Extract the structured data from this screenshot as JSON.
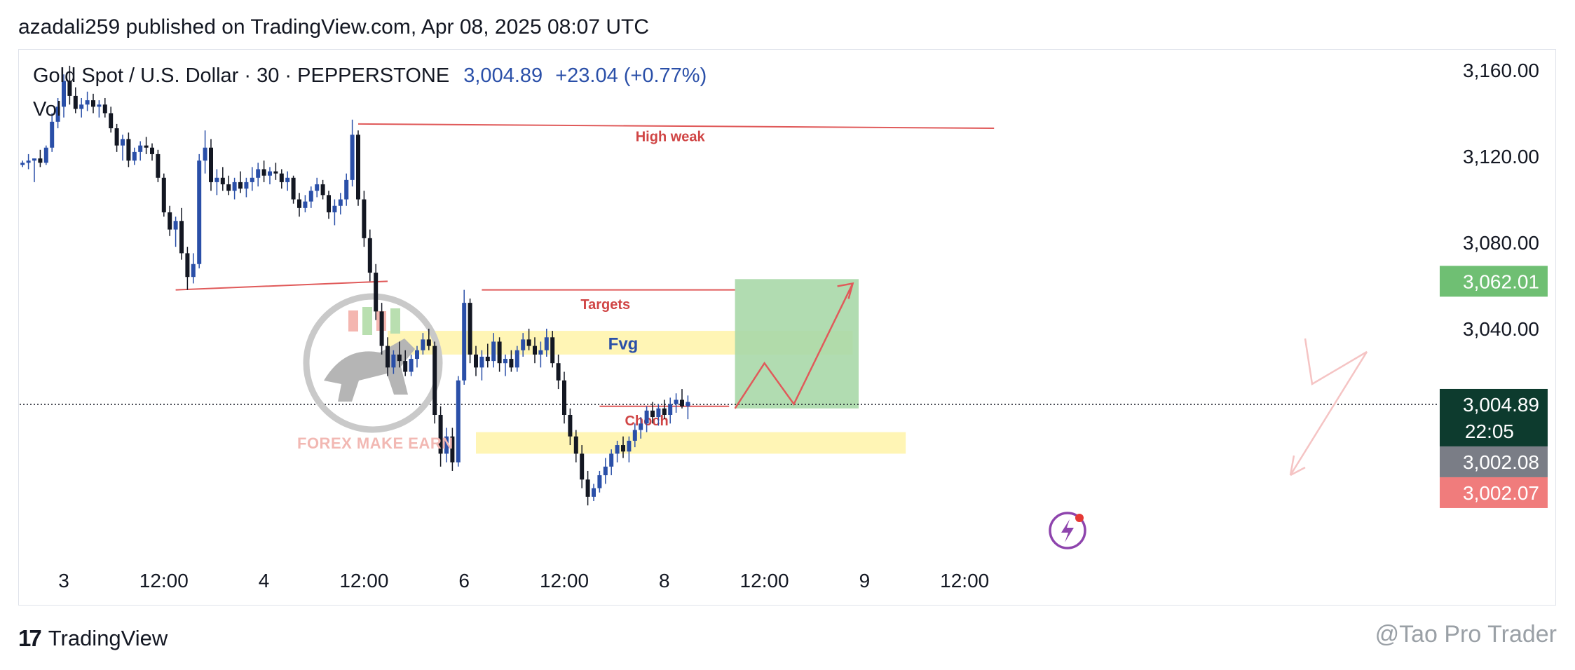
{
  "header": {
    "text": "azadali259 published on TradingView.com, Apr 08, 2025 08:07 UTC"
  },
  "symbol": {
    "name": "Gold Spot / U.S. Dollar · 30 · PEPPERSTONE",
    "price": "3,004.89",
    "change": "+23.04 (+0.77%)",
    "volume_label": "Vol"
  },
  "footer": {
    "brand": "TradingView",
    "credit": "@Tao Pro Trader"
  },
  "watermark": {
    "text": "FOREX MAKE EARN"
  },
  "chart_data": {
    "type": "candlestick",
    "y_axis": {
      "range": [
        2928,
        3168
      ],
      "ticks": [
        {
          "value": 3160,
          "label": "3,160.00"
        },
        {
          "value": 3120,
          "label": "3,120.00"
        },
        {
          "value": 3080,
          "label": "3,080.00"
        },
        {
          "value": 3040,
          "label": "3,040.00"
        }
      ]
    },
    "x_axis": {
      "ticks": [
        {
          "index": 7,
          "label": "3"
        },
        {
          "index": 24,
          "label": "12:00"
        },
        {
          "index": 41,
          "label": "4"
        },
        {
          "index": 58,
          "label": "12:00"
        },
        {
          "index": 75,
          "label": "6"
        },
        {
          "index": 92,
          "label": "12:00"
        },
        {
          "index": 109,
          "label": "8"
        },
        {
          "index": 126,
          "label": "12:00"
        },
        {
          "index": 143,
          "label": "9"
        },
        {
          "index": 160,
          "label": "12:00"
        }
      ]
    },
    "price_labels": [
      {
        "value": 3062.01,
        "label": "3,062.01",
        "color": "#6fbf73",
        "sub": ""
      },
      {
        "value": 3004.89,
        "label": "3,004.89",
        "color": "#0d3b2e",
        "sub": "22:05"
      },
      {
        "value": 3002.08,
        "label": "3,002.08",
        "color": "#7a7d86",
        "sub": ""
      },
      {
        "value": 3002.07,
        "label": "3,002.07",
        "color": "#f07c7c",
        "sub": ""
      }
    ],
    "current_price": 3004.89,
    "up_color": "#2a4fa8",
    "down_color": "#131722",
    "annotations": [
      {
        "kind": "line",
        "text": "High weak",
        "from": [
          57,
          3135
        ],
        "to": [
          165,
          3133
        ],
        "color": "#e05a5a",
        "label_at": [
          110,
          3129
        ]
      },
      {
        "kind": "line",
        "text": "",
        "from": [
          26,
          3058
        ],
        "to": [
          62,
          3062
        ],
        "color": "#e05a5a"
      },
      {
        "kind": "line",
        "text": "Targets",
        "from": [
          78,
          3058
        ],
        "to": [
          121,
          3058
        ],
        "color": "#e05a5a",
        "label_at": [
          99,
          3051
        ]
      },
      {
        "kind": "line",
        "text": "Choch",
        "from": [
          98,
          3004
        ],
        "to": [
          120,
          3004
        ],
        "color": "#e05a5a",
        "label_at": [
          106,
          2997
        ]
      },
      {
        "kind": "zone",
        "text": "Fvg",
        "x0": 62,
        "x1": 141,
        "y0": 3039,
        "y1": 3028,
        "color": "#fff3a8",
        "label_at": [
          102,
          3033
        ]
      },
      {
        "kind": "zone",
        "text": "",
        "x0": 77,
        "x1": 150,
        "y0": 2992,
        "y1": 2982,
        "color": "#fff3a8"
      }
    ],
    "target_box": {
      "x0": 121,
      "x1": 142,
      "y0": 3063,
      "y1": 3003,
      "color": "#a8d8a8"
    },
    "projection": {
      "points": [
        [
          121,
          3003
        ],
        [
          126,
          3024
        ],
        [
          131,
          3005
        ],
        [
          141,
          3061
        ]
      ],
      "color": "#e05a5a"
    },
    "candles": [
      [
        3116,
        3118,
        3115,
        3117
      ],
      [
        3117,
        3121,
        3114,
        3118
      ],
      [
        3118,
        3119,
        3108,
        3119
      ],
      [
        3119,
        3123,
        3115,
        3117
      ],
      [
        3117,
        3125,
        3116,
        3124
      ],
      [
        3124,
        3140,
        3122,
        3136
      ],
      [
        3136,
        3147,
        3133,
        3143
      ],
      [
        3143,
        3158,
        3138,
        3155
      ],
      [
        3155,
        3162,
        3144,
        3148
      ],
      [
        3148,
        3152,
        3140,
        3142
      ],
      [
        3142,
        3147,
        3138,
        3144
      ],
      [
        3144,
        3150,
        3141,
        3146
      ],
      [
        3146,
        3149,
        3140,
        3143
      ],
      [
        3143,
        3146,
        3138,
        3144
      ],
      [
        3144,
        3147,
        3138,
        3140
      ],
      [
        3140,
        3143,
        3131,
        3133
      ],
      [
        3133,
        3135,
        3122,
        3125
      ],
      [
        3125,
        3130,
        3118,
        3128
      ],
      [
        3128,
        3131,
        3115,
        3118
      ],
      [
        3118,
        3124,
        3116,
        3122
      ],
      [
        3122,
        3127,
        3118,
        3125
      ],
      [
        3125,
        3129,
        3121,
        3124
      ],
      [
        3124,
        3126,
        3118,
        3121
      ],
      [
        3121,
        3123,
        3108,
        3110
      ],
      [
        3110,
        3112,
        3092,
        3094
      ],
      [
        3094,
        3097,
        3083,
        3086
      ],
      [
        3086,
        3092,
        3078,
        3090
      ],
      [
        3090,
        3096,
        3072,
        3075
      ],
      [
        3075,
        3078,
        3058,
        3064
      ],
      [
        3064,
        3075,
        3061,
        3070
      ],
      [
        3070,
        3121,
        3068,
        3118
      ],
      [
        3118,
        3132,
        3112,
        3124
      ],
      [
        3124,
        3128,
        3104,
        3108
      ],
      [
        3108,
        3114,
        3102,
        3110
      ],
      [
        3110,
        3115,
        3104,
        3107
      ],
      [
        3107,
        3111,
        3102,
        3104
      ],
      [
        3104,
        3110,
        3100,
        3108
      ],
      [
        3108,
        3113,
        3103,
        3105
      ],
      [
        3105,
        3110,
        3101,
        3108
      ],
      [
        3108,
        3115,
        3104,
        3110
      ],
      [
        3110,
        3117,
        3106,
        3114
      ],
      [
        3114,
        3118,
        3108,
        3111
      ],
      [
        3111,
        3115,
        3107,
        3113
      ],
      [
        3113,
        3117,
        3109,
        3112
      ],
      [
        3112,
        3114,
        3105,
        3108
      ],
      [
        3108,
        3113,
        3104,
        3110
      ],
      [
        3110,
        3111,
        3098,
        3100
      ],
      [
        3100,
        3103,
        3092,
        3096
      ],
      [
        3096,
        3102,
        3094,
        3099
      ],
      [
        3099,
        3106,
        3096,
        3104
      ],
      [
        3104,
        3110,
        3101,
        3107
      ],
      [
        3107,
        3109,
        3100,
        3102
      ],
      [
        3102,
        3104,
        3091,
        3094
      ],
      [
        3094,
        3100,
        3088,
        3097
      ],
      [
        3097,
        3103,
        3093,
        3100
      ],
      [
        3100,
        3112,
        3097,
        3109
      ],
      [
        3109,
        3137,
        3106,
        3130
      ],
      [
        3130,
        3132,
        3097,
        3100
      ],
      [
        3100,
        3104,
        3078,
        3082
      ],
      [
        3082,
        3086,
        3062,
        3066
      ],
      [
        3066,
        3070,
        3044,
        3048
      ],
      [
        3048,
        3052,
        3028,
        3032
      ],
      [
        3032,
        3036,
        3018,
        3022
      ],
      [
        3022,
        3030,
        3019,
        3028
      ],
      [
        3028,
        3034,
        3022,
        3025
      ],
      [
        3025,
        3030,
        3018,
        3020
      ],
      [
        3020,
        3028,
        3018,
        3026
      ],
      [
        3026,
        3032,
        3022,
        3030
      ],
      [
        3030,
        3038,
        3028,
        3035
      ],
      [
        3035,
        3040,
        3030,
        3032
      ],
      [
        3032,
        3034,
        2996,
        3000
      ],
      [
        3000,
        3004,
        2976,
        2982
      ],
      [
        2982,
        2994,
        2978,
        2990
      ],
      [
        2990,
        2994,
        2974,
        2978
      ],
      [
        2978,
        3018,
        2976,
        3016
      ],
      [
        3016,
        3058,
        3014,
        3052
      ],
      [
        3052,
        3054,
        3024,
        3028
      ],
      [
        3028,
        3032,
        3018,
        3022
      ],
      [
        3022,
        3030,
        3016,
        3027
      ],
      [
        3027,
        3033,
        3022,
        3025
      ],
      [
        3025,
        3038,
        3022,
        3034
      ],
      [
        3034,
        3036,
        3020,
        3024
      ],
      [
        3024,
        3028,
        3018,
        3026
      ],
      [
        3026,
        3030,
        3020,
        3022
      ],
      [
        3022,
        3032,
        3020,
        3030
      ],
      [
        3030,
        3038,
        3027,
        3035
      ],
      [
        3035,
        3040,
        3030,
        3032
      ],
      [
        3032,
        3036,
        3024,
        3028
      ],
      [
        3028,
        3034,
        3022,
        3030
      ],
      [
        3030,
        3040,
        3027,
        3036
      ],
      [
        3036,
        3039,
        3022,
        3024
      ],
      [
        3024,
        3028,
        3012,
        3016
      ],
      [
        3016,
        3020,
        2996,
        3000
      ],
      [
        3000,
        3003,
        2986,
        2990
      ],
      [
        2990,
        2993,
        2978,
        2982
      ],
      [
        2982,
        2986,
        2966,
        2970
      ],
      [
        2970,
        2974,
        2958,
        2962
      ],
      [
        2962,
        2968,
        2960,
        2966
      ],
      [
        2966,
        2974,
        2964,
        2972
      ],
      [
        2972,
        2980,
        2968,
        2976
      ],
      [
        2976,
        2984,
        2972,
        2982
      ],
      [
        2982,
        2988,
        2978,
        2986
      ],
      [
        2986,
        2990,
        2980,
        2983
      ],
      [
        2983,
        2990,
        2978,
        2988
      ],
      [
        2988,
        2996,
        2985,
        2993
      ],
      [
        2993,
        2999,
        2989,
        2996
      ],
      [
        2996,
        3004,
        2992,
        3002
      ],
      [
        3002,
        3006,
        2996,
        2999
      ],
      [
        2999,
        3005,
        2995,
        3003
      ],
      [
        3003,
        3007,
        2998,
        3000
      ],
      [
        3000,
        3008,
        2996,
        3005
      ],
      [
        3005,
        3010,
        3001,
        3007
      ],
      [
        3007,
        3012,
        3003,
        3004
      ],
      [
        3004,
        3009,
        2998,
        3006
      ]
    ]
  }
}
